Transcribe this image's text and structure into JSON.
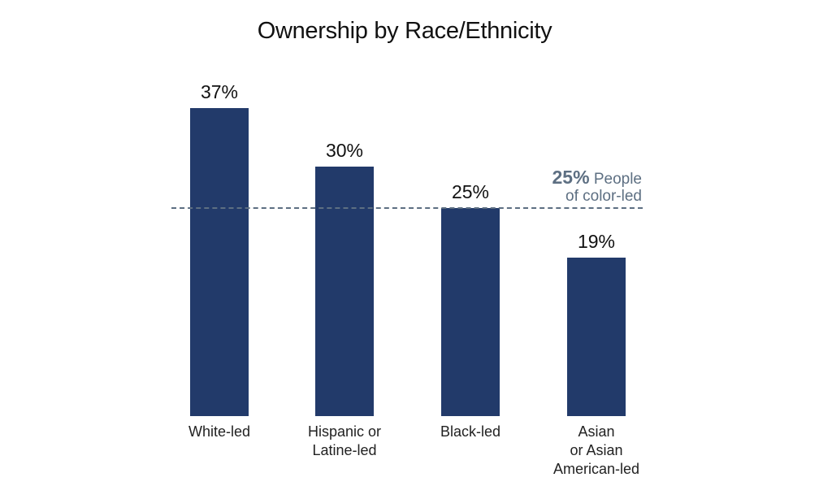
{
  "chart_data": {
    "type": "bar",
    "title": "Ownership by Race/Ethnicity",
    "categories": [
      "White-led",
      "Hispanic or Latine-led",
      "Black-led",
      "Asian or Asian American-led"
    ],
    "category_lines": [
      [
        "White-led"
      ],
      [
        "Hispanic or",
        "Latine-led"
      ],
      [
        "Black-led"
      ],
      [
        "Asian",
        "or Asian",
        "American-led"
      ]
    ],
    "values": [
      37,
      30,
      25,
      19
    ],
    "value_labels": [
      "37%",
      "30%",
      "25%",
      "19%"
    ],
    "unit": "%",
    "xlabel": "",
    "ylabel": "",
    "ylim": [
      0,
      40
    ],
    "grid": false,
    "legend": null,
    "bar_color": "#223a6a",
    "reference_line": {
      "value": 25,
      "label_value": "25%",
      "label_text_line1": "People",
      "label_text_line2": "of color-led",
      "style": "dashed",
      "color": "#5d6f82"
    }
  }
}
